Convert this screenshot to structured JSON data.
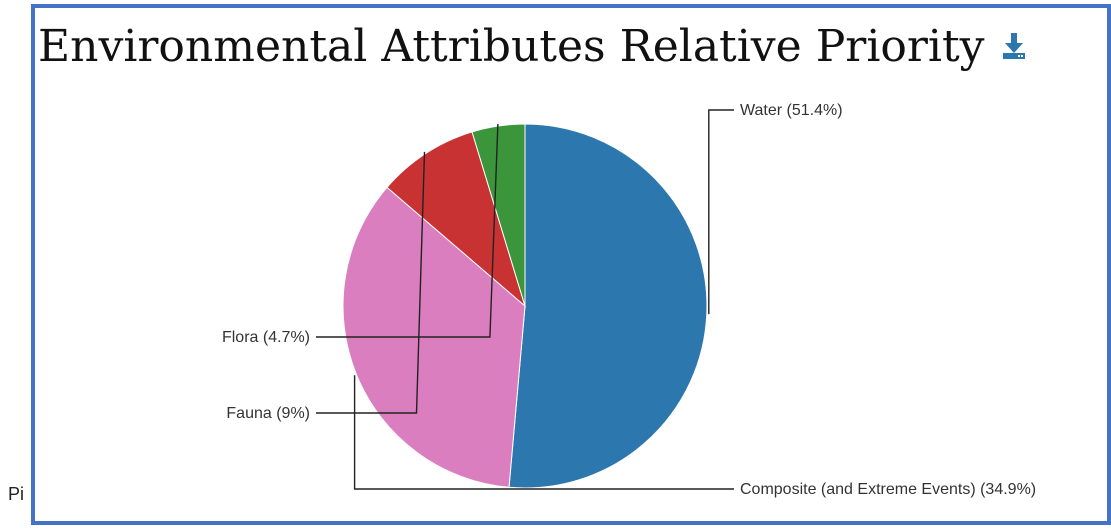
{
  "footer_fragment": "Pi",
  "chart_data": {
    "type": "pie",
    "title": "Environmental Attributes Relative Priority",
    "slices": [
      {
        "label": "Water (51.4%)",
        "value": 51.4,
        "color": "#2c77ad"
      },
      {
        "label": "Composite (and Extreme Events) (34.9%)",
        "value": 34.9,
        "color": "#db7ebf"
      },
      {
        "label": "Fauna (9%)",
        "value": 9.0,
        "color": "#c93232"
      },
      {
        "label": "Flora (4.7%)",
        "value": 4.7,
        "color": "#3b963b"
      }
    ],
    "legend": "none",
    "icons": {
      "download": "download-icon"
    }
  }
}
